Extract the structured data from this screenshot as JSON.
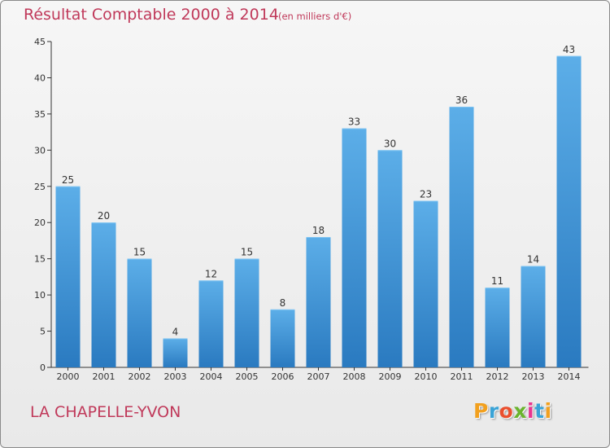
{
  "title": "Résultat Comptable 2000 à 2014",
  "unit_note": "(en milliers d'€)",
  "commune": "LA CHAPELLE-YVON",
  "logo_letters": [
    "P",
    "r",
    "o",
    "x",
    "i",
    "t",
    "i"
  ],
  "logo_colors": [
    "#f2a01e",
    "#3aa3d6",
    "#ea4f2e",
    "#6ab42d",
    "#e8368f",
    "#3aa3d6",
    "#f2a01e"
  ],
  "colors": {
    "accent": "#c0395a",
    "bar_top": "#5caee8",
    "bar_bottom": "#2a7ac0",
    "axis": "#333333"
  },
  "chart_data": {
    "type": "bar",
    "title": "Résultat Comptable 2000 à 2014",
    "xlabel": "",
    "ylabel": "",
    "categories": [
      "2000",
      "2001",
      "2002",
      "2003",
      "2004",
      "2005",
      "2006",
      "2007",
      "2008",
      "2009",
      "2010",
      "2011",
      "2012",
      "2013",
      "2014"
    ],
    "values": [
      25,
      20,
      15,
      4,
      12,
      15,
      8,
      18,
      33,
      30,
      23,
      36,
      11,
      14,
      43
    ],
    "ylim": [
      0,
      45
    ],
    "yticks": [
      0,
      5,
      10,
      15,
      20,
      25,
      30,
      35,
      40,
      45
    ],
    "grid": false
  }
}
